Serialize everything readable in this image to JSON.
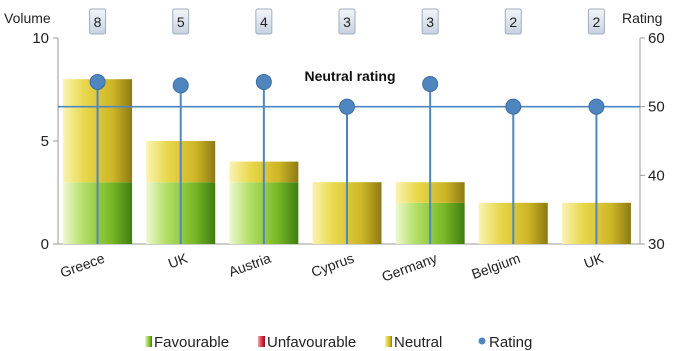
{
  "chart_data": {
    "type": "bar",
    "categories": [
      "Greece",
      "UK",
      "Austria",
      "Cyprus",
      "Germany",
      "Belgium",
      "UK"
    ],
    "volumes": [
      "8",
      "5",
      "4",
      "3",
      "3",
      "2",
      "2"
    ],
    "series": [
      {
        "name": "Favourable",
        "values": [
          3,
          3,
          3,
          0,
          2,
          0,
          0
        ],
        "color": "#7ab526"
      },
      {
        "name": "Unfavourable",
        "values": [
          0,
          0,
          0,
          0,
          0,
          0,
          0
        ],
        "color": "#d42a35"
      },
      {
        "name": "Neutral",
        "values": [
          5,
          2,
          1,
          3,
          1,
          2,
          2
        ],
        "color": "#d8c12c"
      },
      {
        "name": "Rating",
        "type": "lollipop",
        "axis": "right",
        "values": [
          53.6,
          53.1,
          53.6,
          50,
          53.3,
          50,
          50
        ],
        "color": "#4f86bf"
      }
    ],
    "left_axis": {
      "title": "Volume",
      "ylim": [
        0,
        10
      ],
      "ticks": [
        "0",
        "5",
        "10"
      ]
    },
    "right_axis": {
      "title": "Rating",
      "ylim": [
        30,
        60
      ],
      "ticks": [
        "30",
        "40",
        "50",
        "60"
      ]
    },
    "reference_line": {
      "value": 50,
      "axis": "right",
      "label": "Neutral rating"
    },
    "legend": {
      "position": "bottom",
      "items": [
        "Favourable",
        "Unfavourable",
        "Neutral",
        "Rating"
      ]
    },
    "grid": false
  }
}
